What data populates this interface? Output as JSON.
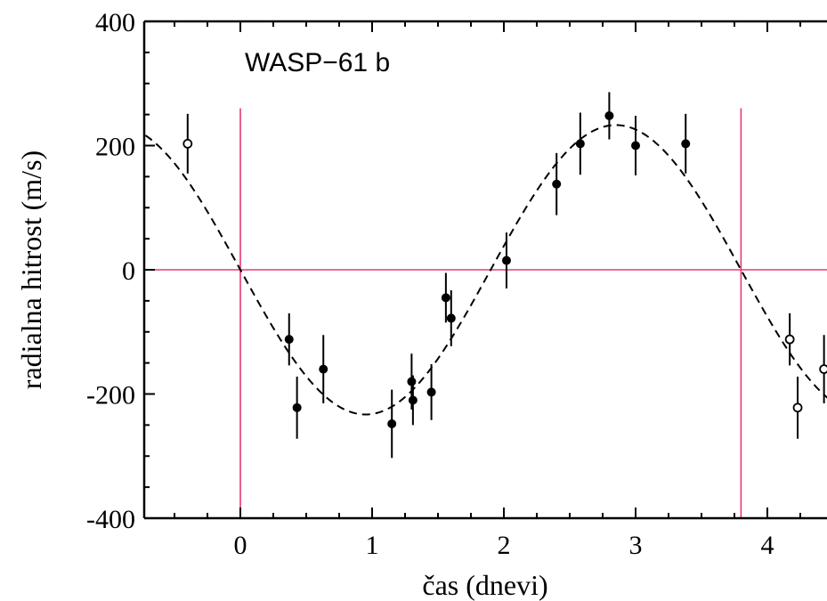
{
  "chart_data": {
    "type": "scatter",
    "title": "WASP−61 b",
    "xlabel": "čas (dnevi)",
    "ylabel": "radialna hitrost (m/s)",
    "xlim": [
      -0.72,
      4.5
    ],
    "ylim": [
      -400,
      400
    ],
    "x_ticks": [
      0,
      1,
      2,
      3,
      4
    ],
    "y_ticks": [
      -400,
      -200,
      0,
      200,
      400
    ],
    "x_tick_labels": [
      "0",
      "1",
      "2",
      "3",
      "4"
    ],
    "y_tick_labels": [
      "-400",
      "-200",
      "0",
      "200",
      "400"
    ],
    "grid": false,
    "reference_lines": {
      "horizontal_y": [
        0
      ],
      "vertical_x": [
        0,
        3.8
      ],
      "color": "#e8386d"
    },
    "model_curve": {
      "style": "dashed",
      "amplitude": 233,
      "period": 3.8,
      "zero_crossing": 0
    },
    "series": [
      {
        "marker": "filled",
        "points": [
          {
            "x": 0.37,
            "y": -112,
            "err": 42
          },
          {
            "x": 0.43,
            "y": -222,
            "err": 50
          },
          {
            "x": 0.63,
            "y": -160,
            "err": 55
          },
          {
            "x": 1.15,
            "y": -248,
            "err": 55
          },
          {
            "x": 1.3,
            "y": -180,
            "err": 45
          },
          {
            "x": 1.31,
            "y": -210,
            "err": 40
          },
          {
            "x": 1.45,
            "y": -197,
            "err": 45
          },
          {
            "x": 1.56,
            "y": -45,
            "err": 40
          },
          {
            "x": 1.6,
            "y": -78,
            "err": 45
          },
          {
            "x": 2.02,
            "y": 15,
            "err": 45
          },
          {
            "x": 2.4,
            "y": 138,
            "err": 50
          },
          {
            "x": 2.58,
            "y": 203,
            "err": 50
          },
          {
            "x": 2.8,
            "y": 248,
            "err": 38
          },
          {
            "x": 3.0,
            "y": 200,
            "err": 48
          },
          {
            "x": 3.38,
            "y": 203,
            "err": 48
          }
        ]
      },
      {
        "marker": "open",
        "points": [
          {
            "x": -0.4,
            "y": 203,
            "err": 48
          },
          {
            "x": 4.17,
            "y": -112,
            "err": 42
          },
          {
            "x": 4.23,
            "y": -222,
            "err": 50
          },
          {
            "x": 4.43,
            "y": -160,
            "err": 55
          }
        ]
      }
    ]
  }
}
